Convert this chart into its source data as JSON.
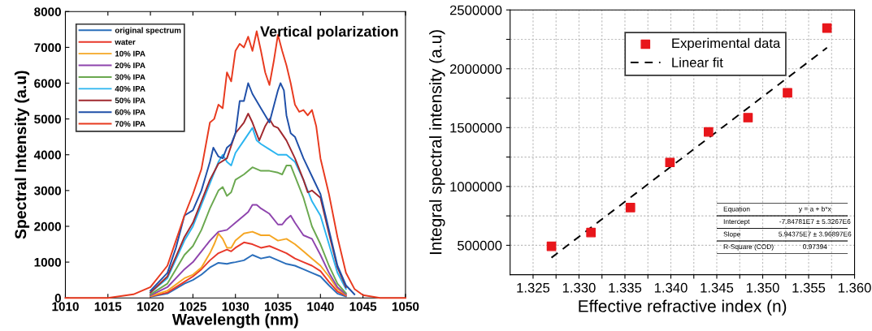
{
  "chart_data": [
    {
      "type": "line",
      "title": "Vertical polarization",
      "xlabel": "Wavelength (nm)",
      "ylabel": "Spectral Intensity (a.u)",
      "xlim": [
        1010,
        1050
      ],
      "xticks": [
        1010,
        1015,
        1020,
        1025,
        1030,
        1035,
        1040,
        1045,
        1050
      ],
      "ylim": [
        0,
        8000
      ],
      "yticks": [
        0,
        1000,
        2000,
        3000,
        4000,
        5000,
        6000,
        7000,
        8000
      ],
      "grid": false,
      "legend": "top left",
      "series": [
        {
          "name": "original spectrum",
          "color": "#2a6ebb",
          "x": [
            1020,
            1022,
            1024,
            1025,
            1026,
            1027,
            1028,
            1029,
            1029.5,
            1030,
            1031,
            1032,
            1033,
            1034,
            1035,
            1036,
            1037,
            1038,
            1039,
            1040,
            1041,
            1042,
            1043
          ],
          "values": [
            30,
            120,
            400,
            500,
            650,
            850,
            980,
            950,
            980,
            1000,
            1050,
            1200,
            1100,
            1150,
            1050,
            950,
            900,
            800,
            700,
            600,
            350,
            120,
            40
          ]
        },
        {
          "name": "water",
          "color": "#e8382a",
          "x": [
            1020,
            1022,
            1024,
            1025,
            1026,
            1027,
            1028,
            1029,
            1029.5,
            1030,
            1031,
            1032,
            1033,
            1034,
            1035,
            1036,
            1037,
            1038,
            1039,
            1040,
            1041,
            1042,
            1043
          ],
          "values": [
            40,
            150,
            450,
            600,
            800,
            1050,
            1250,
            1350,
            1300,
            1400,
            1550,
            1500,
            1400,
            1450,
            1350,
            1250,
            1100,
            1000,
            900,
            750,
            450,
            180,
            60
          ]
        },
        {
          "name": "10% IPA",
          "color": "#f5a623",
          "x": [
            1020,
            1022,
            1024,
            1025,
            1026,
            1027,
            1027.5,
            1028,
            1028.5,
            1029,
            1029.5,
            1030,
            1031,
            1032,
            1033,
            1034,
            1035,
            1036,
            1037,
            1038,
            1039,
            1040,
            1041,
            1042,
            1043
          ],
          "values": [
            50,
            200,
            550,
            650,
            850,
            1250,
            1500,
            1800,
            1650,
            1400,
            1400,
            1600,
            1800,
            1850,
            1750,
            1750,
            1600,
            1650,
            1500,
            1300,
            1100,
            900,
            600,
            250,
            80
          ]
        },
        {
          "name": "20% IPA",
          "color": "#8e44ad",
          "x": [
            1020,
            1022,
            1024,
            1025,
            1026,
            1027,
            1028,
            1029,
            1030,
            1031,
            1031.5,
            1032,
            1032.5,
            1033,
            1034,
            1035,
            1035.5,
            1036,
            1036.5,
            1037,
            1038,
            1039,
            1040,
            1041,
            1042,
            1043
          ],
          "values": [
            70,
            300,
            800,
            1000,
            1300,
            1600,
            1850,
            1900,
            2100,
            2300,
            2400,
            2600,
            2600,
            2500,
            2350,
            2050,
            2050,
            2200,
            2300,
            2100,
            1750,
            1650,
            1200,
            700,
            300,
            100
          ]
        },
        {
          "name": "30% IPA",
          "color": "#6aa84f",
          "x": [
            1020,
            1022,
            1024,
            1025,
            1026,
            1027,
            1028,
            1028.5,
            1029,
            1029.5,
            1030,
            1031,
            1032,
            1033,
            1034,
            1035,
            1035.5,
            1036,
            1036.5,
            1037,
            1038,
            1039,
            1040,
            1041,
            1042,
            1043
          ],
          "values": [
            100,
            400,
            1200,
            1450,
            1900,
            2500,
            3000,
            3100,
            2850,
            2950,
            3300,
            3450,
            3650,
            3550,
            3550,
            3500,
            3450,
            3700,
            3700,
            3400,
            2800,
            2000,
            1500,
            900,
            400,
            130
          ]
        },
        {
          "name": "40% IPA",
          "color": "#2bb5f0",
          "x": [
            1020,
            1022,
            1024,
            1025,
            1026,
            1027,
            1028,
            1028.5,
            1029,
            1029.5,
            1030,
            1031,
            1032,
            1032.5,
            1033,
            1034,
            1035,
            1036,
            1037,
            1038,
            1039,
            1040,
            1041,
            1042,
            1043
          ],
          "values": [
            150,
            550,
            1600,
            2000,
            2600,
            3200,
            3800,
            4000,
            3800,
            3700,
            4050,
            4400,
            4750,
            4400,
            4300,
            4150,
            4000,
            4000,
            3800,
            3300,
            2700,
            2300,
            1500,
            700,
            250
          ]
        },
        {
          "name": "50% IPA",
          "color": "#a0282e",
          "x": [
            1020,
            1022,
            1024,
            1025,
            1026,
            1027,
            1028,
            1029,
            1030,
            1031,
            1031.5,
            1032,
            1032.8,
            1033.5,
            1034,
            1034.5,
            1035,
            1036,
            1037,
            1038,
            1038.5,
            1039,
            1040,
            1041,
            1042,
            1043
          ],
          "values": [
            150,
            600,
            1700,
            2100,
            2700,
            3300,
            3750,
            3900,
            4600,
            4900,
            5150,
            4900,
            4400,
            4800,
            5000,
            4800,
            4750,
            4400,
            3900,
            3300,
            2950,
            3000,
            2800,
            1800,
            850,
            300
          ]
        },
        {
          "name": "60% IPA",
          "color": "#1f4fa8",
          "x": [
            1020,
            1022,
            1023,
            1024,
            1025,
            1026,
            1027,
            1027.4,
            1028,
            1028.5,
            1029,
            1029.5,
            1030,
            1030.5,
            1031,
            1031.5,
            1032,
            1033,
            1034,
            1035,
            1035.3,
            1035.7,
            1036,
            1036.5,
            1037,
            1038,
            1039,
            1040,
            1041,
            1042,
            1043,
            1044
          ],
          "values": [
            200,
            700,
            1400,
            2300,
            2450,
            3000,
            3800,
            4200,
            3950,
            3900,
            4200,
            4300,
            4600,
            5500,
            5500,
            6000,
            5700,
            5300,
            4900,
            5800,
            6000,
            5800,
            5100,
            4600,
            4500,
            3900,
            3400,
            2900,
            1900,
            900,
            350,
            100
          ]
        },
        {
          "name": "70% IPA",
          "color": "#e83a1f",
          "x": [
            1010,
            1015,
            1018,
            1020,
            1022,
            1023,
            1024,
            1025,
            1026,
            1027,
            1027.5,
            1028,
            1028.5,
            1029,
            1029.5,
            1030,
            1030.5,
            1031,
            1031.5,
            1032,
            1032.5,
            1033,
            1033.5,
            1034,
            1034.5,
            1035,
            1035.5,
            1036,
            1036.5,
            1037,
            1037.5,
            1038,
            1038.5,
            1039,
            1039.5,
            1040,
            1041,
            1042,
            1043,
            1044,
            1045,
            1047,
            1050
          ],
          "values": [
            0,
            0,
            100,
            300,
            900,
            1600,
            2300,
            2900,
            3600,
            4900,
            5000,
            5400,
            5300,
            6300,
            6050,
            6900,
            7100,
            7000,
            7300,
            6900,
            7450,
            6900,
            6300,
            5950,
            6600,
            7350,
            6900,
            6500,
            6000,
            5400,
            5200,
            5250,
            5100,
            5250,
            4800,
            3900,
            2900,
            1700,
            700,
            250,
            80,
            0,
            0
          ]
        }
      ]
    },
    {
      "type": "scatter",
      "xlabel": "Effective refractive index (n)",
      "ylabel": "Integral spectral intensity (a.u)",
      "xlim": [
        1.3225,
        1.36
      ],
      "xticks": [
        {
          "value": 1.325,
          "label": "1.325"
        },
        {
          "value": 1.3275,
          "label": null
        },
        {
          "value": 1.33,
          "label": "1.330"
        },
        {
          "value": 1.3325,
          "label": null
        },
        {
          "value": 1.335,
          "label": "1.335"
        },
        {
          "value": 1.3375,
          "label": null
        },
        {
          "value": 1.34,
          "label": "1.340"
        },
        {
          "value": 1.3425,
          "label": null
        },
        {
          "value": 1.345,
          "label": "1.345"
        },
        {
          "value": 1.3475,
          "label": null
        },
        {
          "value": 1.35,
          "label": "1.350"
        },
        {
          "value": 1.3525,
          "label": null
        },
        {
          "value": 1.355,
          "label": "1.355"
        },
        {
          "value": 1.3575,
          "label": null
        },
        {
          "value": 1.36,
          "label": "1.360"
        }
      ],
      "ylim": [
        250000,
        2500000
      ],
      "yticks": [
        500000,
        {
          "value": 750000,
          "label": null
        },
        1000000,
        {
          "value": 1250000,
          "label": null
        },
        1500000,
        {
          "value": 1750000,
          "label": null
        },
        2000000,
        {
          "value": 2250000,
          "label": null
        },
        2500000
      ],
      "grid": true,
      "legend": "top right",
      "series": [
        {
          "name": "Experimental data",
          "type": "scatter",
          "color": "#e8161b",
          "marker": "square",
          "x": [
            1.327,
            1.3313,
            1.3356,
            1.3399,
            1.3441,
            1.3484,
            1.3527,
            1.357
          ],
          "values": [
            491000,
            608000,
            821000,
            1204000,
            1463000,
            1585000,
            1796000,
            2346000
          ]
        },
        {
          "name": "Linear fit",
          "type": "line",
          "color": "#000000",
          "line_style": "dashed",
          "marker": "none",
          "x": [
            1.327,
            1.357
          ],
          "values": [
            395000,
            2179000
          ]
        }
      ],
      "annotations": [
        "Equation",
        "y = a + b*x",
        "Intercept",
        "-7.84781E7 ± 5.3267E6",
        "Slope",
        "5.94375E7 ± 3.96897E6",
        "R-Square (COD)",
        "0.97394"
      ]
    }
  ]
}
